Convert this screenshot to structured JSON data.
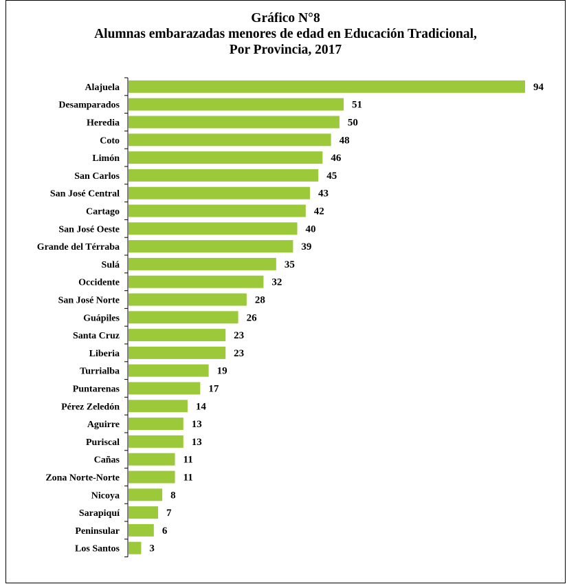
{
  "chart_data": {
    "type": "bar",
    "orientation": "horizontal",
    "title": "Gráfico N°8",
    "subtitle_lines": [
      "Alumnas embarazadas menores de edad en Educación Tradicional,",
      "Por Provincia, 2017"
    ],
    "xlabel": "",
    "ylabel": "",
    "categories": [
      "Alajuela",
      "Desamparados",
      "Heredia",
      "Coto",
      "Limón",
      "San Carlos",
      "San José Central",
      "Cartago",
      "San José Oeste",
      "Grande del Térraba",
      "Sulá",
      "Occidente",
      "San José Norte",
      "Guápiles",
      "Santa Cruz",
      "Liberia",
      "Turrialba",
      "Puntarenas",
      "Pérez Zeledón",
      "Aguirre",
      "Puriscal",
      "Cañas",
      "Zona Norte-Norte",
      "Nicoya",
      "Sarapiquí",
      "Peninsular",
      "Los Santos"
    ],
    "values": [
      94,
      51,
      50,
      48,
      46,
      45,
      43,
      42,
      40,
      39,
      35,
      32,
      28,
      26,
      23,
      23,
      19,
      17,
      14,
      13,
      13,
      11,
      11,
      8,
      7,
      6,
      3
    ],
    "bar_color": "#9bc93a",
    "grid": false,
    "data_labels": true
  }
}
